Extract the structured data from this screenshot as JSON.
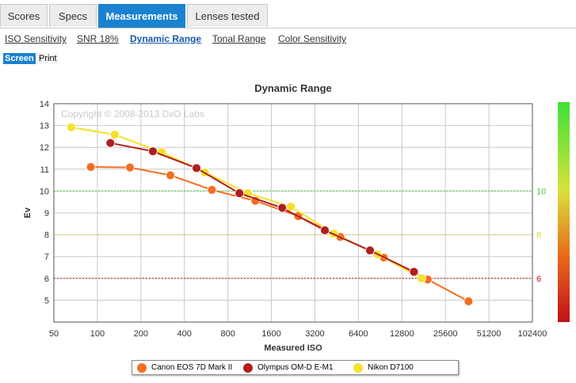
{
  "tabs": [
    {
      "label": "Scores",
      "active": false
    },
    {
      "label": "Specs",
      "active": false
    },
    {
      "label": "Measurements",
      "active": true
    },
    {
      "label": "Lenses tested",
      "active": false
    }
  ],
  "subtabs": [
    {
      "label": "ISO Sensitivity",
      "active": false
    },
    {
      "label": "SNR 18%",
      "active": false
    },
    {
      "label": "Dynamic Range",
      "active": true
    },
    {
      "label": "Tonal Range",
      "active": false
    },
    {
      "label": "Color Sensitivity",
      "active": false
    }
  ],
  "modes": {
    "screen": "Screen",
    "print": "Print"
  },
  "colors": {
    "accent": "#1a82cf",
    "canon": "#f26e22",
    "olympus": "#b01e1e",
    "nikon": "#f5e12a",
    "line10": "#46cf3a",
    "line8": "#e8d23c",
    "line6": "#c01010"
  },
  "chart_data": {
    "type": "line",
    "title": "Dynamic Range",
    "xlabel": "Measured ISO",
    "ylabel": "Ev",
    "watermark": "Copyright © 2008-2013 DxO Labs",
    "x_scale": "log2",
    "xlim": [
      50,
      102400
    ],
    "ylim": [
      4,
      14
    ],
    "x_ticks": [
      "50",
      "100",
      "200",
      "400",
      "800",
      "1600",
      "3200",
      "6400",
      "12800",
      "25600",
      "51200",
      "102400"
    ],
    "y_ticks": [
      "5",
      "6",
      "7",
      "8",
      "9",
      "10",
      "11",
      "12",
      "13",
      "14"
    ],
    "right_labels": [
      "10",
      "8",
      "6"
    ],
    "reference_lines": [
      10,
      8,
      6
    ],
    "series": [
      {
        "name": "Canon EOS 7D Mark II",
        "color": "#f26e22",
        "points": [
          [
            90,
            11.1
          ],
          [
            168,
            11.08
          ],
          [
            320,
            10.72
          ],
          [
            620,
            10.05
          ],
          [
            1240,
            9.55
          ],
          [
            2450,
            8.85
          ],
          [
            4800,
            7.9
          ],
          [
            9600,
            6.95
          ],
          [
            19300,
            5.95
          ],
          [
            37000,
            4.95
          ]
        ]
      },
      {
        "name": "Olympus OM-D E-M1",
        "color": "#b01e1e",
        "points": [
          [
            123,
            12.2
          ],
          [
            242,
            11.82
          ],
          [
            485,
            11.05
          ],
          [
            962,
            9.9
          ],
          [
            1900,
            9.23
          ],
          [
            3750,
            8.2
          ],
          [
            7700,
            7.28
          ],
          [
            15500,
            6.3
          ]
        ]
      },
      {
        "name": "Nikon D7100",
        "color": "#f5e12a",
        "points": [
          [
            66,
            12.92
          ],
          [
            132,
            12.58
          ],
          [
            278,
            11.78
          ],
          [
            555,
            10.85
          ],
          [
            1100,
            9.9
          ],
          [
            2180,
            9.28
          ],
          [
            4320,
            8.05
          ],
          [
            8700,
            7.1
          ],
          [
            17500,
            6.0
          ]
        ]
      }
    ]
  }
}
